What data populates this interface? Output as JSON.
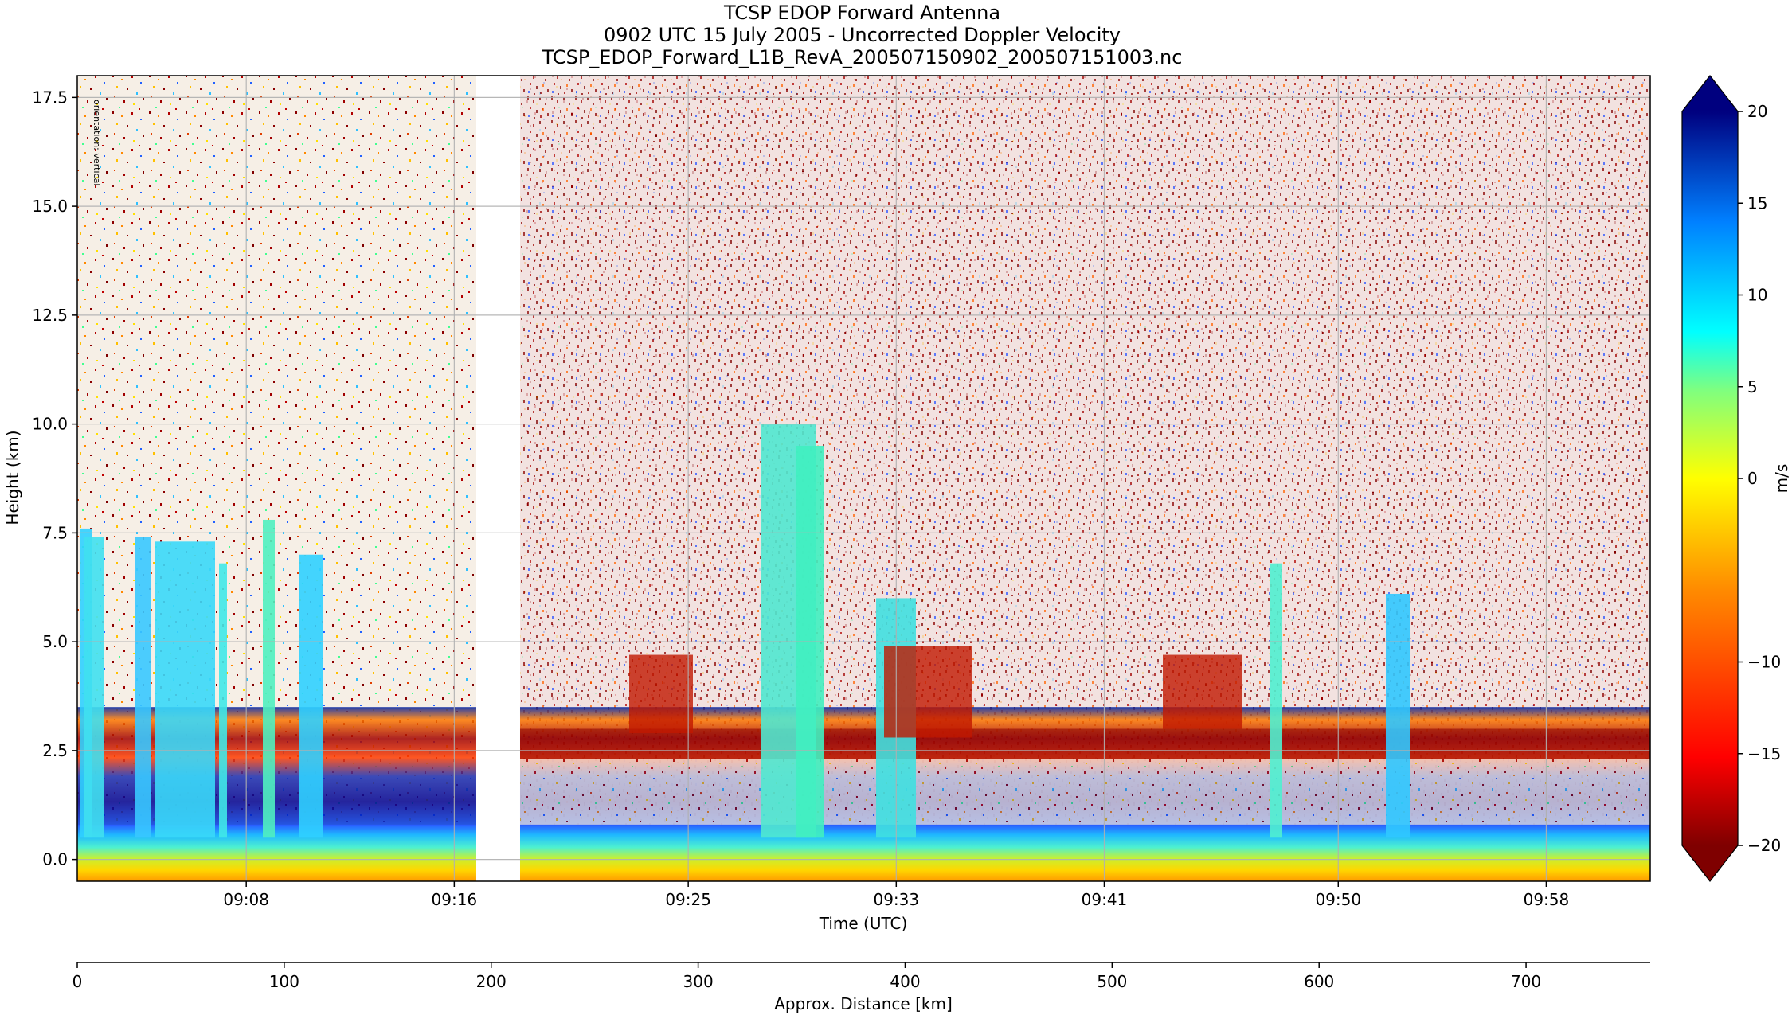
{
  "chart_data": {
    "type": "heatmap",
    "title_lines": [
      "TCSP EDOP Forward Antenna",
      "0902 UTC 15 July 2005 - Uncorrected Doppler Velocity",
      "TCSP_EDOP_Forward_L1B_RevA_200507150902_200507151003.nc"
    ],
    "xlabel": "Time (UTC)",
    "ylabel": "Height (km)",
    "x_ticks": [
      "09:08",
      "09:16",
      "09:25",
      "09:33",
      "09:41",
      "09:50",
      "09:58"
    ],
    "y_ticks": [
      "0.0",
      "2.5",
      "5.0",
      "7.5",
      "10.0",
      "12.5",
      "15.0",
      "17.5"
    ],
    "y_tick_values": [
      0.0,
      2.5,
      5.0,
      7.5,
      10.0,
      12.5,
      15.0,
      17.5
    ],
    "ylim": [
      -0.5,
      18.0
    ],
    "grid": true,
    "side_annotation": "orientation: vertical",
    "data_gap": {
      "start": "09:17",
      "end": "09:19"
    },
    "colorbar": {
      "label": "m/s",
      "ticks": [
        "20",
        "15",
        "10",
        "5",
        "0",
        "−10",
        "−15",
        "−20"
      ],
      "tick_values": [
        20,
        15,
        10,
        5,
        0,
        -10,
        -15,
        -20
      ],
      "range": [
        -20,
        20
      ],
      "colormap": "jet",
      "extend": "both"
    },
    "distance_axis": {
      "xlabel": "Approx. Distance [km]",
      "ticks": [
        "0",
        "100",
        "200",
        "300",
        "400",
        "500",
        "600",
        "700"
      ],
      "tick_values": [
        0,
        100,
        200,
        300,
        400,
        500,
        600,
        700
      ],
      "xlim": [
        0,
        760
      ]
    },
    "features": {
      "surface_echo": {
        "height_km_range": [
          -0.5,
          0.8
        ],
        "velocity_m_s_range": [
          -8,
          8
        ]
      },
      "melting_layer_km": 3.0,
      "strong_echo_band_km": [
        0.6,
        3.5
      ]
    }
  }
}
